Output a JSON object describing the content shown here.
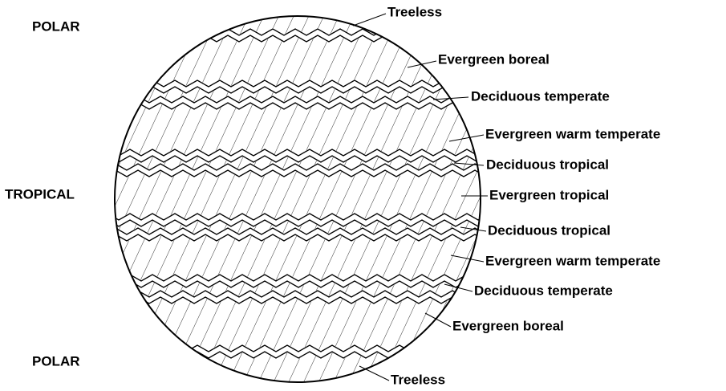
{
  "latitude_labels": [
    "POLAR",
    "TROPICAL",
    "POLAR"
  ],
  "vegetation_labels": [
    "Treeless",
    "Evergreen boreal",
    "Deciduous temperate",
    "Evergreen warm temperate",
    "Deciduous tropical",
    "Evergreen tropical",
    "Deciduous tropical",
    "Evergreen warm temperate",
    "Deciduous temperate",
    "Evergreen boreal",
    "Treeless"
  ]
}
